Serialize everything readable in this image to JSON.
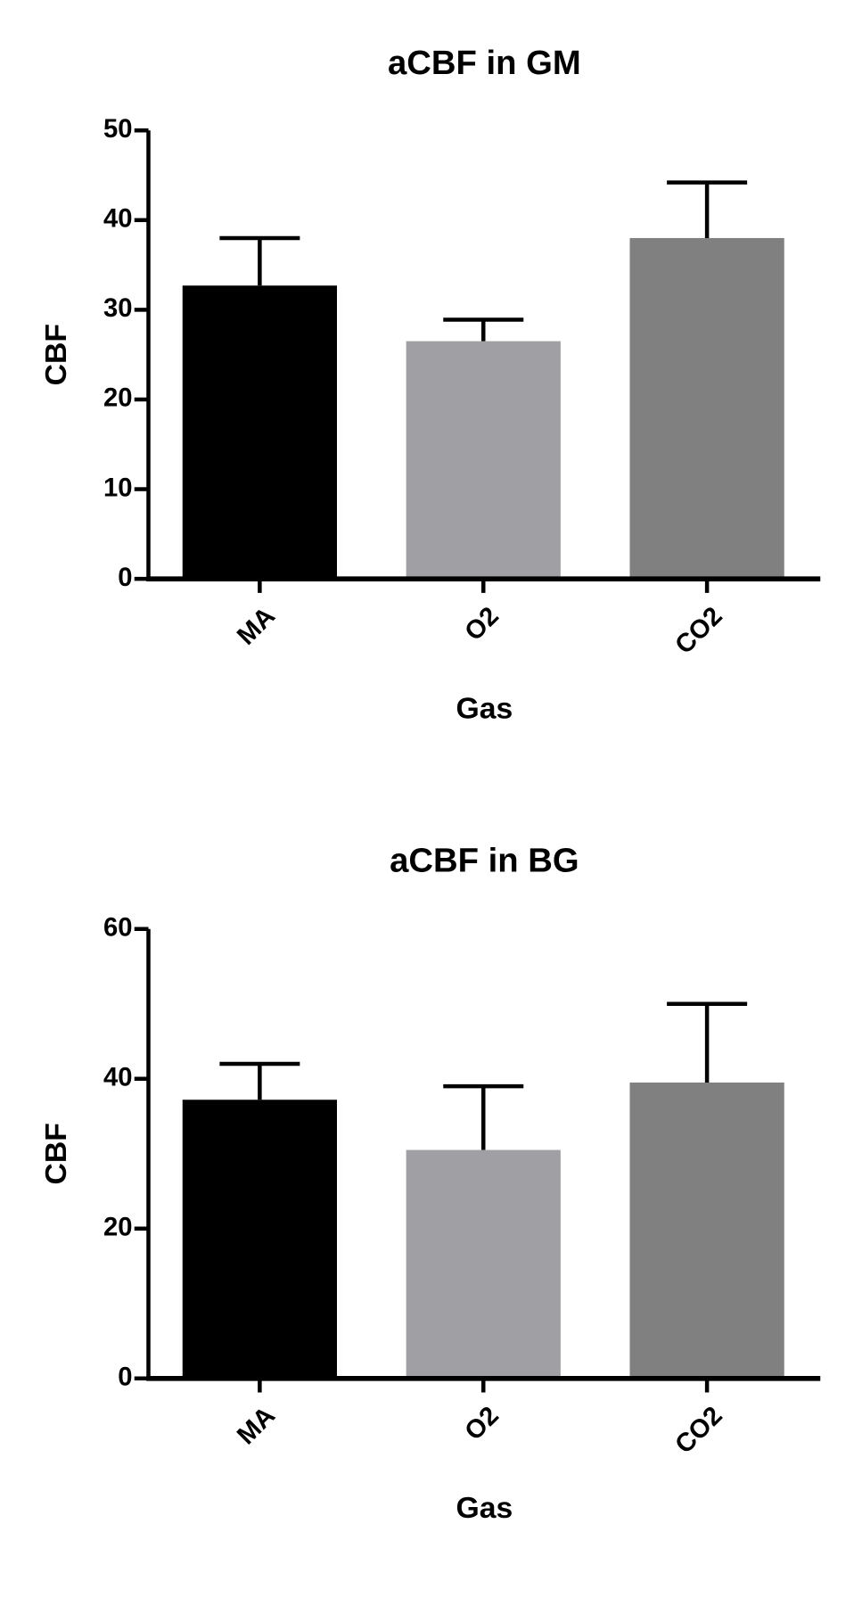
{
  "chart_data": [
    {
      "type": "bar",
      "title": "aCBF in GM",
      "x_label": "Gas",
      "y_label": "CBF",
      "categories": [
        "MA",
        "O2",
        "CO2"
      ],
      "values": [
        32.7,
        26.5,
        38
      ],
      "errors": [
        5.3,
        2.4,
        6.2
      ],
      "colors": [
        "#000000",
        "#a0a0a4",
        "#808080"
      ],
      "ylim": [
        0,
        50
      ],
      "yticks": [
        0,
        10,
        20,
        30,
        40,
        50
      ]
    },
    {
      "type": "bar",
      "title": "aCBF in BG",
      "x_label": "Gas",
      "y_label": "CBF",
      "categories": [
        "MA",
        "O2",
        "CO2"
      ],
      "values": [
        37.2,
        30.5,
        39.5
      ],
      "errors": [
        4.8,
        8.5,
        10.5
      ],
      "colors": [
        "#000000",
        "#a0a0a4",
        "#808080"
      ],
      "ylim": [
        0,
        60
      ],
      "yticks": [
        0,
        20,
        40,
        60
      ]
    }
  ]
}
